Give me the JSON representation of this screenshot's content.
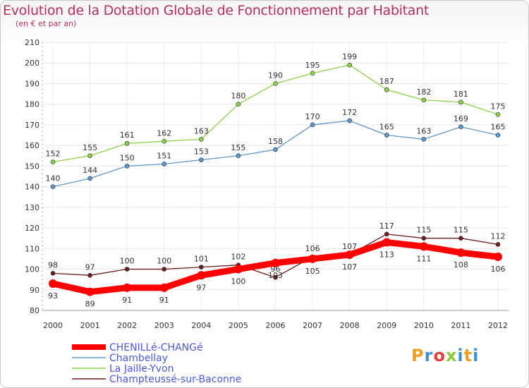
{
  "title": "Evolution de la Dotation Globale de Fonctionnement par Habitant",
  "subtitle": "(en € et par an)",
  "logo": {
    "text": "Proxiti",
    "colors": [
      "#f0a020",
      "#3a8fd0",
      "#e04040",
      "#8cc83c",
      "#3a8fd0",
      "#f0a020",
      "#3a8fd0"
    ]
  },
  "chart_data": {
    "type": "line",
    "x": [
      "2000",
      "2001",
      "2002",
      "2003",
      "2004",
      "2005",
      "2006",
      "2007",
      "2008",
      "2009",
      "2010",
      "2011",
      "2012"
    ],
    "ylim": [
      80,
      210
    ],
    "yticks": [
      80,
      90,
      100,
      110,
      120,
      130,
      140,
      150,
      160,
      170,
      180,
      190,
      200,
      210
    ],
    "grid": true,
    "legend": "bottom",
    "series": [
      {
        "name": "Champteussé-sur-Baconne",
        "color": "#6b1c1c",
        "bold": false,
        "values": [
          98,
          97,
          100,
          100,
          101,
          102,
          96,
          106,
          107,
          117,
          115,
          115,
          112
        ],
        "labels": [
          "98",
          "97",
          "100",
          "100",
          "101",
          "102",
          "96",
          "106",
          "107",
          "117",
          "115",
          "115",
          "112"
        ]
      },
      {
        "name": "Chambellay",
        "color": "#5d98c8",
        "bold": false,
        "values": [
          140,
          144,
          150,
          151,
          153,
          155,
          158,
          170,
          172,
          165,
          163,
          169,
          165
        ],
        "labels": [
          "140",
          "144",
          "150",
          "151",
          "153",
          "155",
          "158",
          "170",
          "172",
          "165",
          "163",
          "169",
          "165"
        ]
      },
      {
        "name": "La Jaille-Yvon",
        "color": "#8cd04a",
        "bold": false,
        "values": [
          152,
          155,
          161,
          162,
          163,
          180,
          190,
          195,
          199,
          187,
          182,
          181,
          175
        ],
        "labels": [
          "152",
          "155",
          "161",
          "162",
          "163",
          "180",
          "190",
          "195",
          "199",
          "187",
          "182",
          "181",
          "175"
        ]
      },
      {
        "name": "CHENILLé-CHANGé",
        "color": "#ff0000",
        "bold": true,
        "values": [
          93,
          89,
          91,
          91,
          97,
          100,
          103,
          105,
          107,
          113,
          111,
          108,
          106
        ],
        "labels": [
          "93",
          "89",
          "91",
          "91",
          "97",
          "100",
          "103",
          "105",
          "107",
          "113",
          "111",
          "108",
          "106"
        ]
      }
    ],
    "legend_order": [
      "CHENILLé-CHANGé",
      "Chambellay",
      "La Jaille-Yvon",
      "Champteussé-sur-Baconne"
    ]
  }
}
